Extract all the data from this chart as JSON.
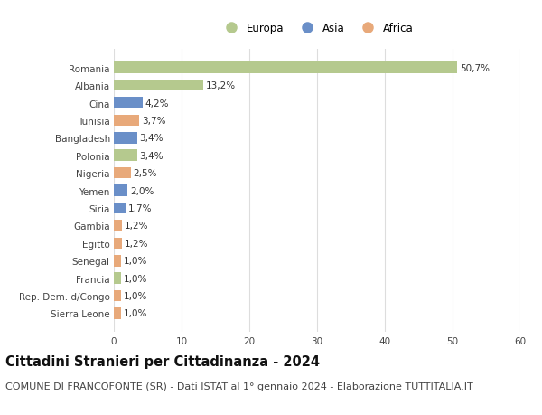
{
  "title": "Cittadini Stranieri per Cittadinanza - 2024",
  "subtitle": "COMUNE DI FRANCOFONTE (SR) - Dati ISTAT al 1° gennaio 2024 - Elaborazione TUTTITALIA.IT",
  "categories": [
    "Romania",
    "Albania",
    "Cina",
    "Tunisia",
    "Bangladesh",
    "Polonia",
    "Nigeria",
    "Yemen",
    "Siria",
    "Gambia",
    "Egitto",
    "Senegal",
    "Francia",
    "Rep. Dem. d/Congo",
    "Sierra Leone"
  ],
  "values": [
    50.7,
    13.2,
    4.2,
    3.7,
    3.4,
    3.4,
    2.5,
    2.0,
    1.7,
    1.2,
    1.2,
    1.0,
    1.0,
    1.0,
    1.0
  ],
  "labels": [
    "50,7%",
    "13,2%",
    "4,2%",
    "3,7%",
    "3,4%",
    "3,4%",
    "2,5%",
    "2,0%",
    "1,7%",
    "1,2%",
    "1,2%",
    "1,0%",
    "1,0%",
    "1,0%",
    "1,0%"
  ],
  "colors": [
    "#b5c98e",
    "#b5c98e",
    "#6a8fc8",
    "#e8a97a",
    "#6a8fc8",
    "#b5c98e",
    "#e8a97a",
    "#6a8fc8",
    "#6a8fc8",
    "#e8a97a",
    "#e8a97a",
    "#e8a97a",
    "#b5c98e",
    "#e8a97a",
    "#e8a97a"
  ],
  "legend_labels": [
    "Europa",
    "Asia",
    "Africa"
  ],
  "legend_colors": [
    "#b5c98e",
    "#6a8fc8",
    "#e8a97a"
  ],
  "xlim": [
    0,
    60
  ],
  "xticks": [
    0,
    10,
    20,
    30,
    40,
    50,
    60
  ],
  "background_color": "#ffffff",
  "grid_color": "#dddddd",
  "bar_height": 0.65,
  "title_fontsize": 10.5,
  "subtitle_fontsize": 8,
  "label_fontsize": 7.5,
  "tick_fontsize": 7.5,
  "legend_fontsize": 8.5
}
